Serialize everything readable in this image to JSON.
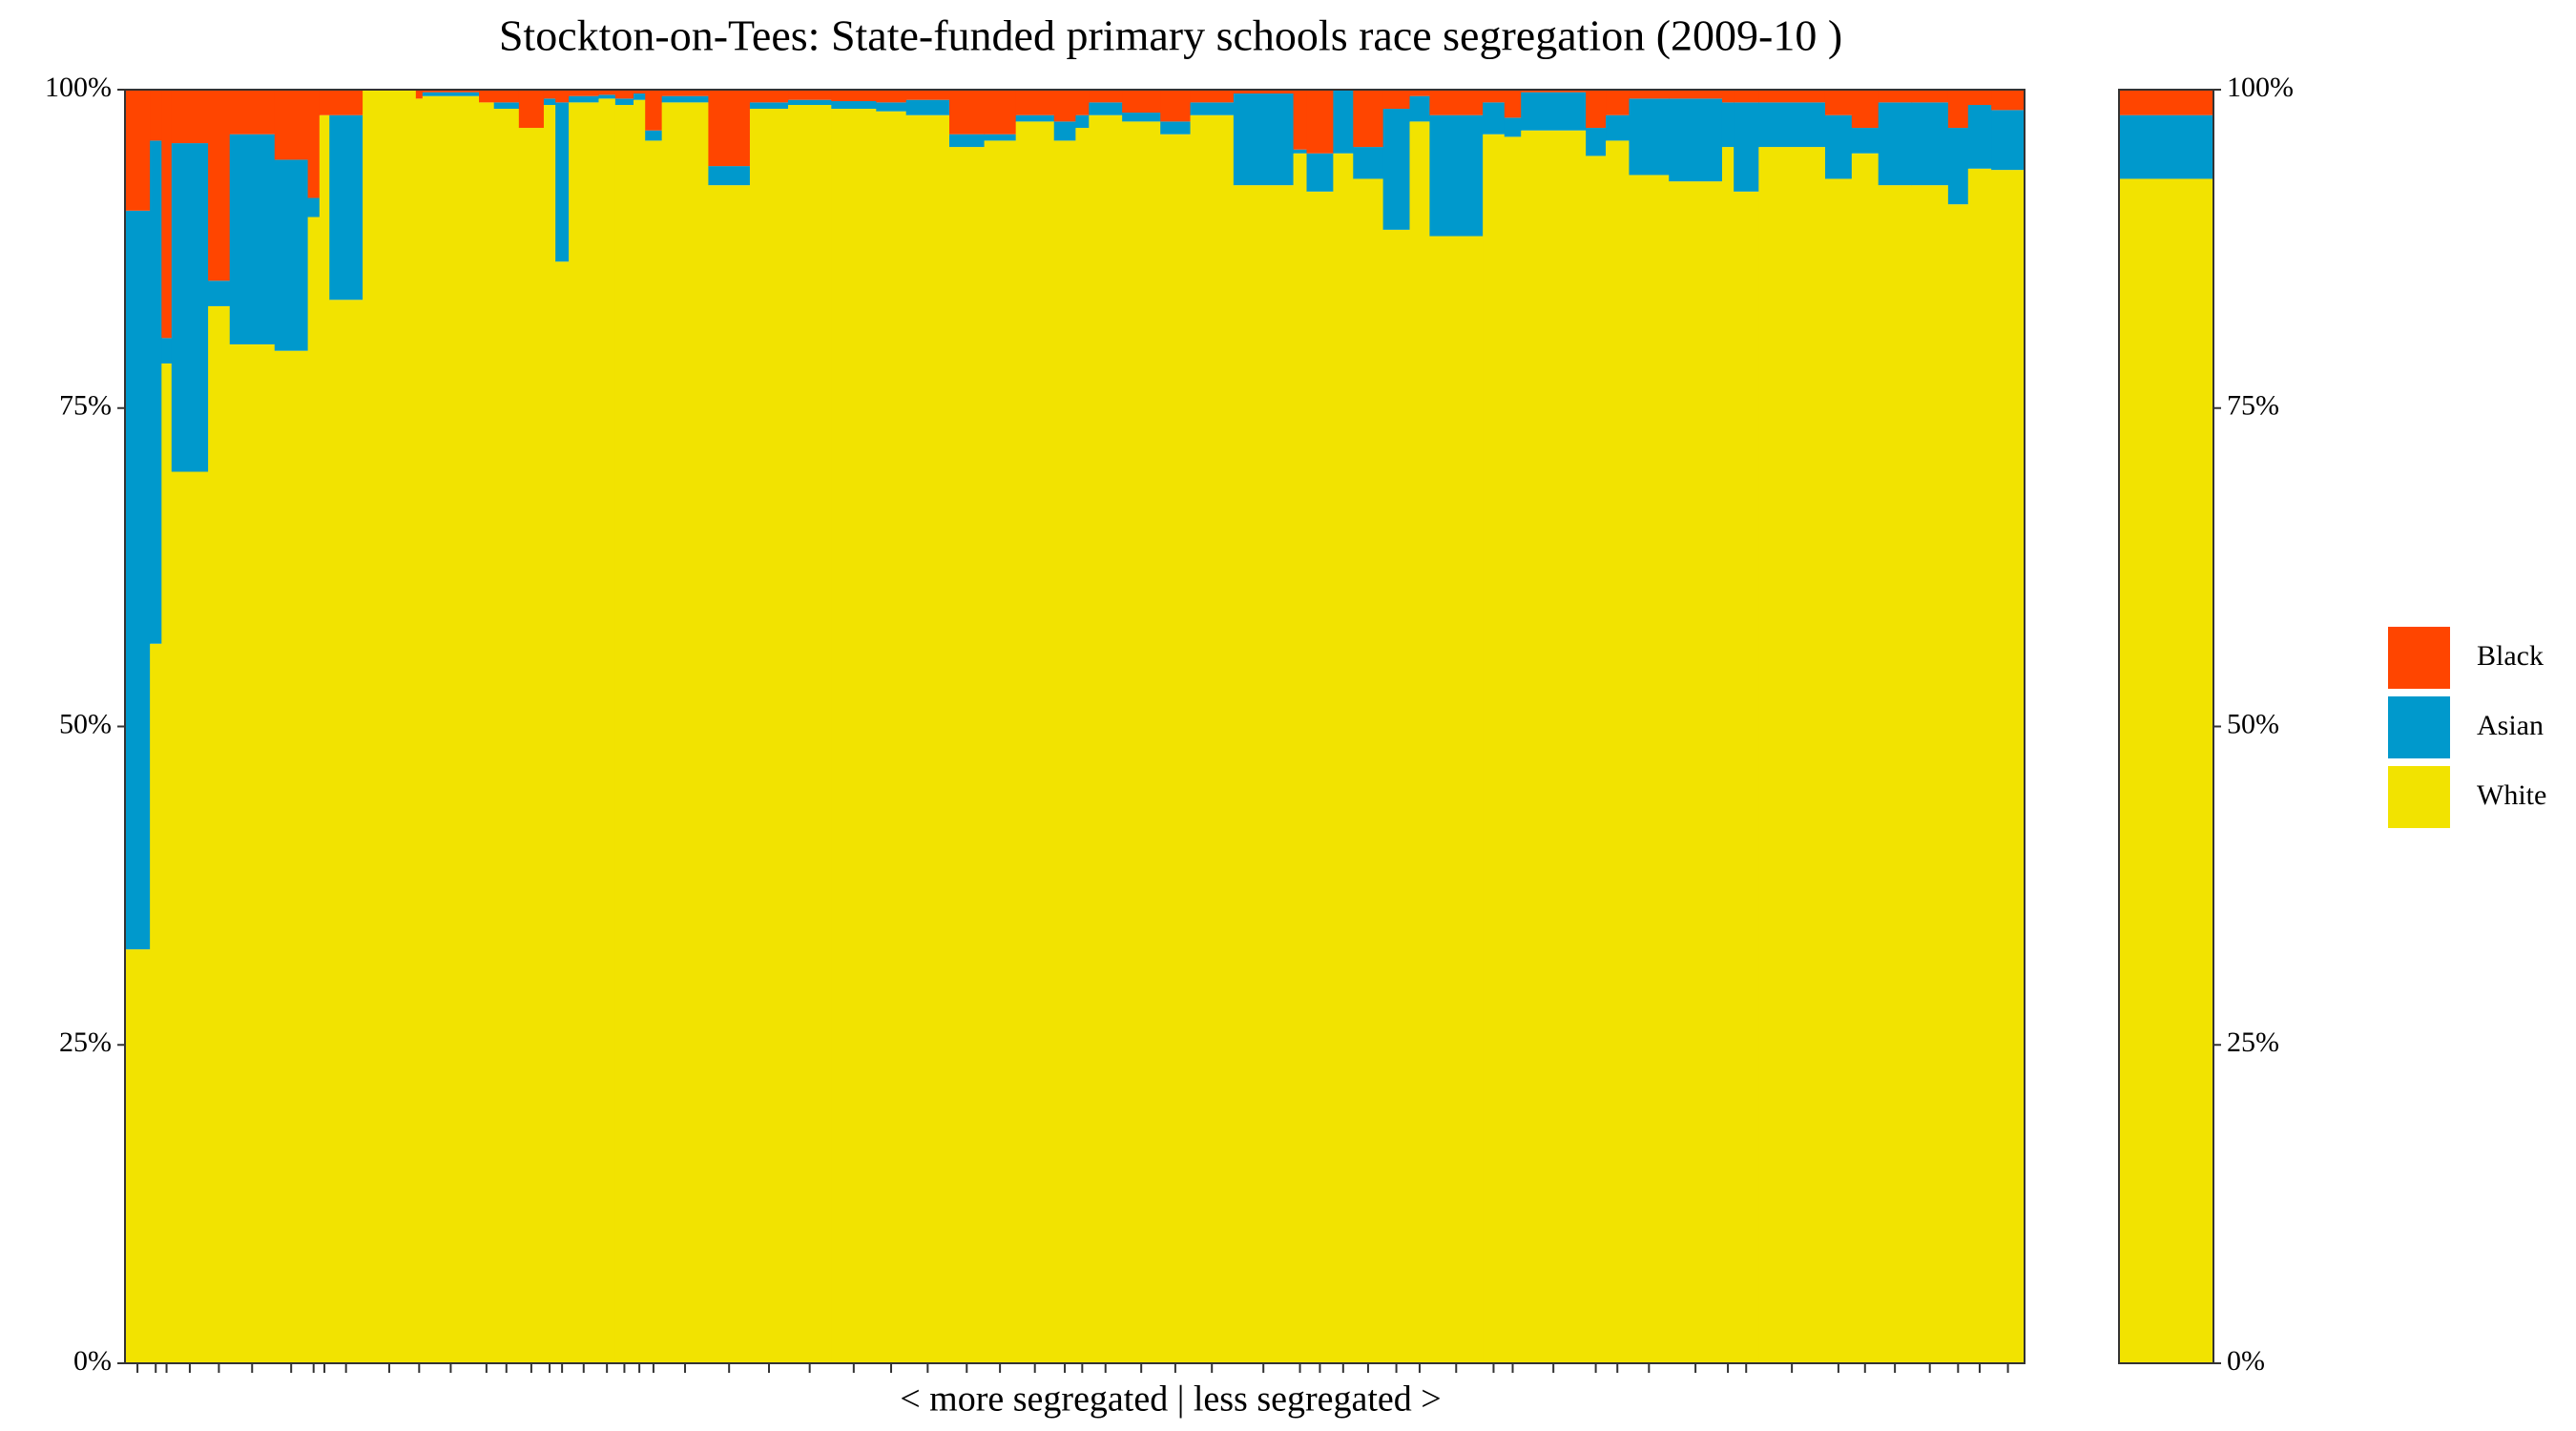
{
  "chart_data": {
    "type": "marimekko",
    "title": "Stockton-on-Tees: State-funded primary schools race segregation (2009-10 )",
    "x_label": "< more segregated | less segregated >",
    "ylim": [
      0,
      100
    ],
    "yticks": [
      {
        "value": 0,
        "label": "0%"
      },
      {
        "value": 25,
        "label": "25%"
      },
      {
        "value": 50,
        "label": "50%"
      },
      {
        "value": 75,
        "label": "75%"
      },
      {
        "value": 100,
        "label": "100%"
      }
    ],
    "legend": "right",
    "widths": [
      15,
      7,
      6,
      22,
      13,
      27,
      20,
      7,
      6,
      20,
      32,
      4,
      34,
      9,
      15,
      15,
      7,
      8,
      18,
      10,
      11,
      7,
      10,
      28,
      25,
      23,
      26,
      27,
      18,
      26,
      21,
      19,
      23,
      13,
      8,
      20,
      23,
      18,
      26,
      36,
      8,
      16,
      12,
      18,
      16,
      12,
      32,
      13,
      10,
      39,
      12,
      14,
      24,
      32,
      7,
      15,
      40,
      16,
      16,
      20,
      22,
      12,
      14,
      20
    ],
    "series": [
      {
        "name": "Black",
        "color": "#ff4500",
        "overall": 2,
        "values": [
          9.5,
          4,
          19.5,
          4.2,
          15,
          3.5,
          5.5,
          8.5,
          2,
          2,
          0,
          0.7,
          0.2,
          1,
          1,
          3,
          0.7,
          1,
          0.5,
          0.4,
          0.7,
          0.3,
          3.2,
          0.5,
          6,
          1,
          0.8,
          0.9,
          1,
          0.8,
          3.5,
          3.5,
          2,
          2.5,
          2,
          1,
          1.8,
          2.5,
          1,
          0.3,
          4.7,
          5,
          0,
          4.5,
          1.5,
          0.5,
          2,
          1,
          2.2,
          0.2,
          3,
          2,
          0.7,
          0.7,
          1,
          1,
          1,
          2,
          3,
          1,
          1,
          3,
          1.2,
          1.6
        ]
      },
      {
        "name": "Asian",
        "color": "#0099cc",
        "overall": 5,
        "values": [
          58,
          39.5,
          2,
          25.8,
          2,
          16.5,
          15,
          1.5,
          0,
          14.5,
          0,
          0,
          0.3,
          0,
          0.5,
          0,
          0.5,
          12.5,
          0.5,
          0.3,
          0.5,
          0.5,
          0.8,
          0.5,
          1.5,
          0.5,
          0.4,
          0.6,
          0.7,
          1.2,
          1,
          0.5,
          0.5,
          1.5,
          1,
          1,
          0.7,
          1,
          1,
          7.2,
          0.3,
          3,
          5,
          2.5,
          9.5,
          2,
          9.5,
          2.5,
          1.5,
          3,
          2.2,
          2,
          6,
          6.5,
          3.5,
          7,
          3.5,
          5,
          2,
          6.5,
          6.5,
          6,
          5,
          4.7
        ]
      },
      {
        "name": "White",
        "color": "#f2e300",
        "overall": 93,
        "values": [
          32.5,
          56.5,
          78.5,
          70,
          83,
          80,
          79.5,
          90,
          98,
          83.5,
          100,
          99.3,
          99.5,
          99,
          98.5,
          97,
          98.8,
          86.5,
          99,
          99.3,
          98.8,
          99.2,
          96,
          99,
          92.5,
          98.5,
          98.8,
          98.5,
          98.3,
          98,
          95.5,
          96,
          97.5,
          96,
          97,
          98,
          97.5,
          96.5,
          98,
          92.5,
          95,
          92,
          95,
          93,
          89,
          97.5,
          88.5,
          96.5,
          96.3,
          96.8,
          94.8,
          96,
          93.3,
          92.8,
          95.5,
          92,
          95.5,
          93,
          95,
          92.5,
          92.5,
          91,
          93.8,
          93.7
        ]
      }
    ]
  }
}
